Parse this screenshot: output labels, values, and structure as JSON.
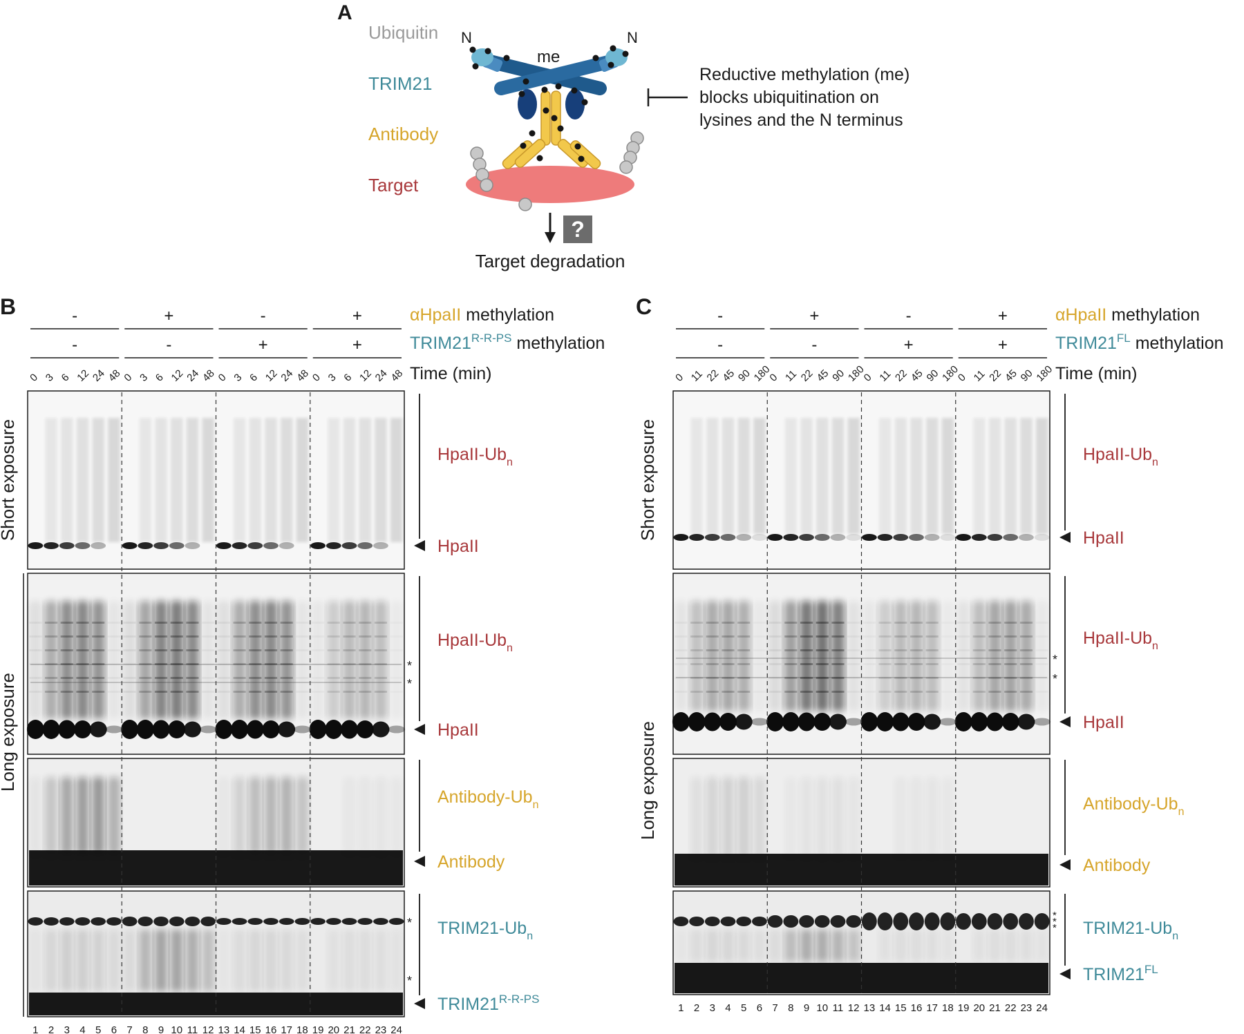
{
  "colors": {
    "ubiquitin": "#9a9a9a",
    "trim21": "#3f8a99",
    "antibody": "#d6a52a",
    "target": "#a8383b",
    "target_fill": "#ee7b7b",
    "trim21_dark": "#1f5a8c",
    "trim21_light": "#6fb7d2",
    "antibody_fill": "#f2c84b",
    "gel_ink": "#0c0c0c"
  },
  "panel_a": {
    "letter": "A",
    "legend": {
      "ubiquitin": "Ubiquitin",
      "trim21": "TRIM21",
      "antibody": "Antibody",
      "target": "Target"
    },
    "n_left": "N",
    "n_right": "N",
    "me_label": "me",
    "inhibition_text": [
      "Reductive methylation (me)",
      "blocks ubiquitination on",
      "lysines and the N terminus"
    ],
    "question_mark": "?",
    "degradation_label": "Target degradation"
  },
  "panel_b": {
    "letter": "B",
    "antibody_methylation": [
      "-",
      "+",
      "-",
      "+"
    ],
    "trim21_methylation": [
      "-",
      "-",
      "+",
      "+"
    ],
    "antibody_label_main": "αHpaII",
    "antibody_label_rest": " methylation",
    "trim21_label_main": "TRIM21",
    "trim21_label_sup": "R-R-PS",
    "trim21_label_rest": " methylation",
    "time_label": "Time (min)",
    "time_points": [
      "0",
      "3",
      "6",
      "12",
      "24",
      "48"
    ],
    "lanes": [
      "1",
      "2",
      "3",
      "4",
      "5",
      "6",
      "7",
      "8",
      "9",
      "10",
      "11",
      "12",
      "13",
      "14",
      "15",
      "16",
      "17",
      "18",
      "19",
      "20",
      "21",
      "22",
      "23",
      "24"
    ],
    "short_exposure_label": "Short exposure",
    "long_exposure_label": "Long exposure",
    "labels": {
      "hpaii_ub_short": "HpaII-Ub",
      "hpaii_short": "HpaII",
      "hpaii_ub_long": "HpaII-Ub",
      "hpaii_long": "HpaII",
      "antibody_ub": "Antibody-Ub",
      "antibody": "Antibody",
      "trim21_ub": "TRIM21-Ub",
      "trim21_main": "TRIM21",
      "trim21_sup": "R-R-PS",
      "sub_n": "n"
    },
    "asterisk": "*"
  },
  "panel_c": {
    "letter": "C",
    "antibody_methylation": [
      "-",
      "+",
      "-",
      "+"
    ],
    "trim21_methylation": [
      "-",
      "-",
      "+",
      "+"
    ],
    "antibody_label_main": "αHpaII",
    "antibody_label_rest": " methylation",
    "trim21_label_main": "TRIM21",
    "trim21_label_sup": "FL",
    "trim21_label_rest": " methylation",
    "time_label": "Time (min)",
    "time_points": [
      "0",
      "11",
      "22",
      "45",
      "90",
      "180"
    ],
    "lanes": [
      "1",
      "2",
      "3",
      "4",
      "5",
      "6",
      "7",
      "8",
      "9",
      "10",
      "11",
      "12",
      "13",
      "14",
      "15",
      "16",
      "17",
      "18",
      "19",
      "20",
      "21",
      "22",
      "23",
      "24"
    ],
    "short_exposure_label": "Short exposure",
    "long_exposure_label": "Long exposure",
    "labels": {
      "hpaii_ub_short": "HpaII-Ub",
      "hpaii_short": "HpaII",
      "hpaii_ub_long": "HpaII-Ub",
      "hpaii_long": "HpaII",
      "antibody_ub": "Antibody-Ub",
      "antibody": "Antibody",
      "trim21_ub": "TRIM21-Ub",
      "trim21_main": "TRIM21",
      "trim21_sup": "FL",
      "sub_n": "n"
    },
    "asterisk": "*",
    "triple_asterisk": "*\n*\n*"
  }
}
